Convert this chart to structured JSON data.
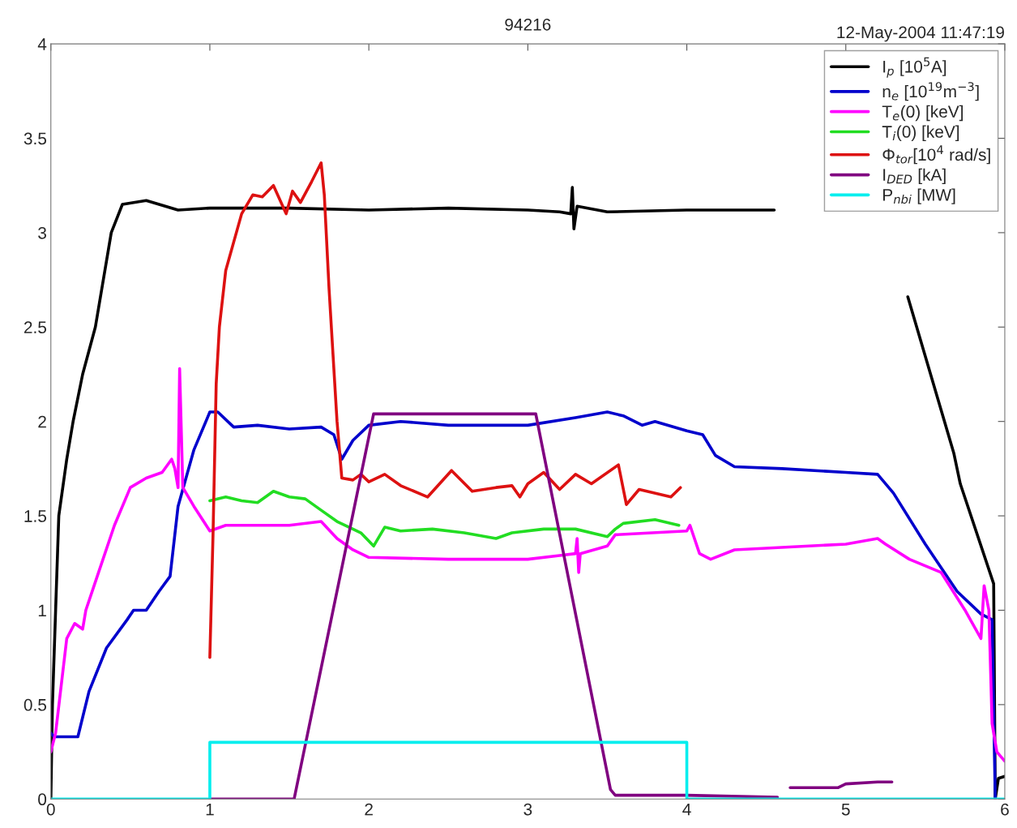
{
  "chart_data": {
    "type": "line",
    "title": "94216",
    "annotations": [
      "12-May-2004 11:47:19"
    ],
    "xlim": [
      0,
      6
    ],
    "xticks": [
      0,
      1,
      2,
      3,
      4,
      5,
      6
    ],
    "ylim": [
      0,
      4
    ],
    "yticks": [
      0,
      0.5,
      1,
      1.5,
      2,
      2.5,
      3,
      3.5,
      4
    ],
    "grid": false,
    "legend": "top right",
    "marker": "none",
    "line_style": "solid",
    "series": [
      {
        "name": "I$_{p}$ [10$^{5}$A]",
        "color": "#000000",
        "x": [
          0,
          0.01,
          0.03,
          0.05,
          0.1,
          0.14,
          0.2,
          0.28,
          0.38,
          0.45,
          0.6,
          0.8,
          1.0,
          1.5,
          2.0,
          2.5,
          3.0,
          3.2,
          3.27,
          3.28,
          3.29,
          3.31,
          3.5,
          4.0,
          4.55,
          4.6,
          5.39,
          5.68,
          5.72,
          5.93,
          5.94,
          5.96,
          6.0
        ],
        "values": [
          0,
          0.5,
          1.0,
          1.5,
          1.8,
          2.0,
          2.25,
          2.5,
          3.0,
          3.15,
          3.17,
          3.12,
          3.13,
          3.13,
          3.12,
          3.13,
          3.12,
          3.11,
          3.1,
          3.24,
          3.02,
          3.14,
          3.11,
          3.12,
          3.12,
          null,
          2.66,
          1.83,
          1.67,
          1.14,
          0.0,
          0.11,
          0.12
        ]
      },
      {
        "name": "n$_{e}$ [10$^{19}$m$^{−3}$]",
        "color": "#0000cc",
        "x": [
          0,
          0.02,
          0.17,
          0.24,
          0.35,
          0.48,
          0.52,
          0.6,
          0.68,
          0.75,
          0.8,
          0.9,
          1.0,
          1.05,
          1.15,
          1.3,
          1.5,
          1.7,
          1.78,
          1.83,
          1.9,
          2.0,
          2.2,
          2.5,
          3.0,
          3.3,
          3.5,
          3.6,
          3.72,
          3.8,
          4.0,
          4.1,
          4.18,
          4.3,
          4.6,
          5.0,
          5.2,
          5.3,
          5.5,
          5.7,
          5.85,
          5.92,
          5.94
        ],
        "values": [
          0.35,
          0.33,
          0.33,
          0.57,
          0.8,
          0.95,
          1.0,
          1.0,
          1.1,
          1.18,
          1.55,
          1.85,
          2.05,
          2.05,
          1.97,
          1.98,
          1.96,
          1.97,
          1.93,
          1.8,
          1.9,
          1.98,
          2.0,
          1.98,
          1.98,
          2.02,
          2.05,
          2.03,
          1.98,
          2.0,
          1.95,
          1.93,
          1.82,
          1.76,
          1.75,
          1.73,
          1.72,
          1.62,
          1.35,
          1.1,
          0.98,
          0.95,
          0.0
        ]
      },
      {
        "name": "T$_{e}$(0) [keV]",
        "color": "#ff00ff",
        "x": [
          0,
          0.03,
          0.1,
          0.15,
          0.2,
          0.22,
          0.3,
          0.4,
          0.5,
          0.6,
          0.7,
          0.76,
          0.78,
          0.8,
          0.81,
          0.83,
          0.9,
          1.0,
          1.1,
          1.5,
          1.7,
          1.8,
          1.9,
          2.0,
          2.5,
          3.0,
          3.2,
          3.3,
          3.31,
          3.32,
          3.33,
          3.5,
          3.55,
          4.0,
          4.02,
          4.08,
          4.15,
          4.3,
          5.0,
          5.2,
          5.25,
          5.4,
          5.6,
          5.75,
          5.85,
          5.87,
          5.9,
          5.92,
          5.95,
          6.0
        ],
        "values": [
          0.25,
          0.35,
          0.85,
          0.93,
          0.9,
          1.0,
          1.2,
          1.45,
          1.65,
          1.7,
          1.73,
          1.8,
          1.75,
          1.65,
          2.28,
          1.65,
          1.55,
          1.42,
          1.45,
          1.45,
          1.47,
          1.38,
          1.32,
          1.28,
          1.27,
          1.27,
          1.29,
          1.3,
          1.38,
          1.2,
          1.3,
          1.34,
          1.4,
          1.42,
          1.45,
          1.3,
          1.27,
          1.32,
          1.35,
          1.38,
          1.35,
          1.27,
          1.2,
          1.0,
          0.85,
          1.13,
          1.0,
          0.4,
          0.25,
          0.2
        ]
      },
      {
        "name": "T$_{i}$(0) [keV]",
        "color": "#22dd22",
        "x": [
          1.0,
          1.1,
          1.2,
          1.3,
          1.4,
          1.5,
          1.6,
          1.7,
          1.8,
          1.9,
          1.95,
          2.03,
          2.1,
          2.2,
          2.4,
          2.6,
          2.8,
          2.9,
          3.1,
          3.3,
          3.5,
          3.55,
          3.6,
          3.8,
          3.95
        ],
        "values": [
          1.58,
          1.6,
          1.58,
          1.57,
          1.63,
          1.6,
          1.59,
          1.53,
          1.47,
          1.43,
          1.41,
          1.34,
          1.44,
          1.42,
          1.43,
          1.41,
          1.38,
          1.41,
          1.43,
          1.43,
          1.39,
          1.43,
          1.46,
          1.48,
          1.45
        ]
      },
      {
        "name": "Φ$_{tor}$[10$^{4}$ rad/s]",
        "color": "#dd1111",
        "x": [
          1.0,
          1.02,
          1.04,
          1.06,
          1.1,
          1.2,
          1.27,
          1.33,
          1.4,
          1.48,
          1.52,
          1.57,
          1.64,
          1.7,
          1.72,
          1.75,
          1.8,
          1.83,
          1.9,
          1.95,
          2.0,
          2.1,
          2.2,
          2.37,
          2.52,
          2.65,
          2.8,
          2.9,
          2.95,
          3.0,
          3.1,
          3.2,
          3.3,
          3.4,
          3.57,
          3.62,
          3.7,
          3.9,
          3.96
        ],
        "values": [
          0.75,
          1.4,
          2.2,
          2.5,
          2.8,
          3.1,
          3.2,
          3.19,
          3.25,
          3.1,
          3.22,
          3.16,
          3.27,
          3.37,
          3.2,
          2.7,
          2.0,
          1.7,
          1.69,
          1.72,
          1.68,
          1.72,
          1.66,
          1.6,
          1.74,
          1.63,
          1.65,
          1.66,
          1.6,
          1.67,
          1.73,
          1.64,
          1.72,
          1.67,
          1.77,
          1.56,
          1.64,
          1.6,
          1.65
        ]
      },
      {
        "name": "I$_{DED}$ [kA]",
        "color": "#800080",
        "x": [
          1.0,
          1.53,
          2.03,
          3.05,
          3.52,
          3.55,
          4.0,
          4.57,
          4.6,
          4.65,
          4.95,
          5.0,
          5.2,
          5.29
        ],
        "values": [
          0,
          0,
          2.04,
          2.04,
          0.05,
          0.02,
          0.02,
          0.01,
          null,
          0.06,
          0.06,
          0.08,
          0.09,
          0.09
        ]
      },
      {
        "name": "P$_{nbi}$ [MW]",
        "color": "#00eeee",
        "x": [
          0,
          1.0,
          1.0,
          2.0,
          3.0,
          4.0,
          4.0,
          6.0
        ],
        "values": [
          0,
          0,
          0.3,
          0.3,
          0.3,
          0.3,
          0,
          0
        ]
      }
    ]
  }
}
